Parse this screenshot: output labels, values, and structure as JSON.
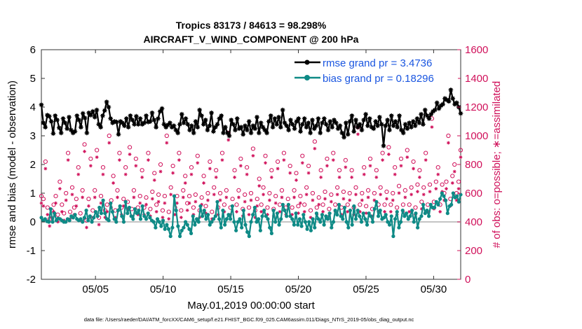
{
  "chart_data": {
    "type": "line",
    "title": "Tropics 83173 / 84613 = 98.298%",
    "subtitle": "AIRCRAFT_V_WIND_COMPONENT @ 200 hPa",
    "xlabel": "May.01,2019 00:00:00 start",
    "ylabel_left": "rmse and bias (model - observation)",
    "ylabel_right": "# of obs: o=possible; ∗=assimilated",
    "footer": "data file: /Users/raeder/DAI/ATM_forcXX/CAM6_setup/f.e21.FHIST_BGC.f09_025.CAM6assim.011/Diags_NTrS_2019-05/obs_diag_output.nc",
    "x_range_days": [
      1,
      32
    ],
    "y_left_range": [
      -2,
      6
    ],
    "y_right_range": [
      0,
      1600
    ],
    "x_tick_days": [
      5,
      10,
      15,
      20,
      25,
      30
    ],
    "x_tick_labels": [
      "05/05",
      "05/10",
      "05/15",
      "05/20",
      "05/25",
      "05/30"
    ],
    "y_left_ticks": [
      "-2",
      "-1",
      "0",
      "1",
      "2",
      "3",
      "4",
      "5",
      "6"
    ],
    "y_right_ticks": [
      "0",
      "200",
      "400",
      "600",
      "800",
      "1000",
      "1200",
      "1400",
      "1600"
    ],
    "zero_line": 0,
    "colors": {
      "rmse": "#000000",
      "bias": "#0e8a86",
      "obs": "#d0105a",
      "zero": "#bbbbbb"
    },
    "series": [
      {
        "name": "rmse grand pr = 3.4736",
        "axis": "left",
        "values": [
          4.08,
          3.45,
          3.3,
          3.72,
          3.68,
          3.5,
          3.08,
          3.7,
          3.55,
          3.28,
          3.1,
          3.6,
          3.45,
          3.25,
          3.65,
          3.2,
          3.1,
          3.15,
          3.7,
          3.55,
          3.3,
          3.78,
          3.62,
          3.1,
          3.8,
          3.72,
          3.85,
          3.65,
          3.9,
          3.4,
          3.3,
          3.7,
          3.88,
          4.18,
          4.0,
          3.6,
          3.45,
          3.5,
          3.48,
          3.05,
          3.5,
          3.45,
          3.35,
          3.6,
          3.3,
          3.7,
          3.55,
          3.4,
          3.68,
          3.4,
          3.6,
          3.4,
          3.45,
          3.7,
          3.48,
          3.5,
          3.8,
          3.55,
          3.3,
          3.6,
          3.85,
          3.95,
          3.4,
          3.3,
          3.38,
          3.45,
          3.3,
          3.35,
          3.2,
          3.1,
          3.4,
          3.75,
          3.45,
          3.6,
          3.4,
          3.2,
          3.35,
          3.1,
          3.5,
          3.3,
          3.9,
          3.7,
          3.4,
          3.55,
          3.2,
          3.35,
          3.8,
          3.15,
          3.3,
          3.4,
          3.6,
          3.7,
          3.1,
          3.3,
          3.1,
          3.0,
          3.55,
          3.4,
          3.2,
          3.6,
          3.25,
          3.3,
          3.05,
          3.35,
          3.2,
          3.5,
          3.1,
          3.35,
          3.25,
          3.65,
          3.1,
          3.45,
          3.3,
          3.2,
          3.1,
          3.5,
          3.7,
          3.3,
          3.6,
          3.4,
          3.65,
          3.3,
          3.9,
          3.45,
          3.35,
          3.2,
          3.55,
          3.4,
          3.25,
          3.5,
          3.6,
          3.15,
          3.4,
          3.6,
          3.3,
          3.45,
          3.1,
          3.55,
          3.25,
          3.35,
          3.6,
          3.1,
          3.45,
          3.6,
          3.4,
          3.2,
          3.5,
          3.3,
          3.55,
          3.45,
          3.25,
          3.35,
          3.1,
          2.95,
          3.45,
          3.05,
          3.5,
          3.7,
          3.15,
          3.55,
          3.3,
          3.4,
          3.2,
          3.55,
          3.75,
          3.35,
          3.6,
          3.3,
          3.25,
          3.5,
          3.35,
          3.65,
          3.4,
          2.65,
          3.35,
          3.55,
          3.2,
          3.7,
          3.35,
          3.5,
          3.3,
          3.7,
          3.2,
          3.1,
          3.4,
          3.25,
          3.45,
          3.3,
          3.5,
          3.35,
          3.6,
          3.45,
          3.75,
          3.4,
          3.9,
          3.7,
          3.6,
          3.75,
          3.85,
          3.9,
          4.15,
          3.95,
          4.05,
          4.1,
          4.3,
          4.25,
          4.2,
          4.6,
          4.3,
          4.1,
          4.15,
          4.0,
          3.78
        ]
      },
      {
        "name": "bias grand pr = 0.18296",
        "axis": "left",
        "values": [
          0.15,
          0.05,
          0.1,
          0.02,
          0.0,
          0.45,
          0.0,
          0.3,
          0.05,
          0.12,
          0.1,
          0.05,
          0.0,
          0.0,
          0.1,
          0.05,
          0.2,
          0.15,
          0.25,
          0.1,
          0.05,
          0.1,
          0.0,
          0.15,
          0.4,
          0.05,
          0.2,
          0.0,
          0.15,
          0.35,
          0.2,
          0.5,
          0.3,
          0.75,
          0.3,
          0.1,
          0.05,
          0.65,
          0.35,
          0.1,
          0.0,
          0.4,
          0.55,
          0.2,
          0.0,
          0.7,
          0.3,
          0.5,
          0.2,
          0.1,
          0.45,
          0.3,
          0.4,
          0.1,
          0.55,
          0.2,
          0.1,
          0.3,
          0.15,
          0.05,
          0.0,
          -0.2,
          0.1,
          0.0,
          -0.15,
          0.05,
          -0.25,
          -0.1,
          -0.25,
          -0.5,
          -0.2,
          0.9,
          0.4,
          -0.15,
          -0.5,
          -0.3,
          -0.2,
          0.0,
          -0.1,
          -0.25,
          -0.4,
          0.2,
          -0.1,
          0.1,
          0.0,
          0.55,
          0.2,
          0.4,
          0.1,
          0.25,
          -0.1,
          0.0,
          0.1,
          0.2,
          0.7,
          0.1,
          -0.2,
          0.4,
          -0.1,
          0.1,
          0.25,
          0.1,
          0.55,
          0.0,
          -0.3,
          0.0,
          0.1,
          -0.2,
          0.4,
          -0.1,
          -0.35,
          -0.5,
          0.0,
          0.25,
          0.5,
          0.0,
          0.1,
          -0.3,
          0.2,
          0.4,
          0.2,
          0.1,
          -0.2,
          -0.4,
          0.4,
          0.0,
          0.3,
          -0.1,
          0.1,
          0.6,
          0.4,
          0.2,
          0.6,
          0.2,
          0.1,
          -0.1,
          0.3,
          -0.1,
          0.1,
          -0.15,
          0.25,
          0.0,
          -0.25,
          0.0,
          -0.3,
          0.1,
          -0.2,
          0.3,
          0.1,
          0.0,
          0.25,
          -0.1,
          0.2,
          0.1,
          0.3,
          -0.2,
          0.0,
          0.4,
          0.25,
          0.6,
          0.2,
          0.1,
          0.5,
          0.0,
          -0.2,
          0.4,
          -0.1,
          0.55,
          0.1,
          0.4,
          0.2,
          0.0,
          0.3,
          0.1,
          -0.1,
          0.3,
          0.2,
          0.0,
          0.45,
          0.7,
          0.2,
          0.4,
          0.1,
          0.15,
          0.25,
          0.0,
          -0.1,
          0.2,
          -0.5,
          0.1,
          0.35,
          -0.2,
          0.0,
          0.4,
          0.2,
          0.3,
          0.1,
          0.2,
          0.4,
          0.0,
          0.3,
          -0.2,
          0.1,
          0.2,
          0.6,
          0.3,
          0.4,
          0.2,
          0.6,
          0.5,
          0.5,
          0.7,
          0.6,
          0.8,
          1.0,
          0.9,
          0.75,
          0.3,
          0.55,
          0.6,
          1.0,
          0.85,
          0.9,
          0.7,
          0.95
        ]
      },
      {
        "name": "obs possible (o)",
        "axis": "right",
        "values": [
          580,
          560,
          820,
          500,
          420,
          480,
          520,
          580,
          450,
          680,
          520,
          460,
          600,
          880,
          470,
          640,
          500,
          560,
          780,
          460,
          620,
          940,
          410,
          560,
          840,
          480,
          620,
          900,
          430,
          580,
          780,
          480,
          520,
          1000,
          550,
          720,
          480,
          620,
          880,
          500,
          560,
          780,
          540,
          920,
          490,
          620,
          840,
          500,
          580,
          760,
          500,
          570,
          880,
          490,
          610,
          740,
          520,
          590,
          800,
          480,
          580,
          1000,
          470,
          640,
          790,
          500,
          580,
          880,
          480,
          620,
          720,
          530,
          580,
          780,
          500,
          590,
          860,
          480,
          570,
          720,
          510,
          600,
          820,
          470,
          640,
          760,
          500,
          600,
          880,
          520,
          620,
          1020,
          500,
          560,
          760,
          520,
          620,
          840,
          490,
          590,
          780,
          500,
          600,
          910,
          480,
          560,
          700,
          520,
          640,
          860,
          500,
          600,
          760,
          490,
          580,
          820,
          520,
          620,
          880,
          500,
          560,
          790,
          500,
          620,
          740,
          510,
          580,
          860,
          520,
          640,
          790,
          480,
          600,
          960,
          500,
          570,
          760,
          520,
          610,
          840,
          490,
          590,
          880,
          520,
          640,
          760,
          500,
          610,
          830,
          520,
          600,
          760,
          500,
          640,
          1060,
          520,
          600,
          780,
          510,
          620,
          840,
          490,
          600,
          760,
          520,
          640,
          880,
          520,
          610,
          920,
          520,
          600,
          780,
          500,
          650,
          840,
          520,
          620,
          900,
          520,
          640,
          820,
          500,
          660,
          760,
          540,
          640,
          880,
          520,
          660,
          1120,
          540,
          680,
          780,
          520,
          660,
          600,
          680,
          1000,
          560,
          720,
          800,
          600,
          680,
          900
        ]
      },
      {
        "name": "obs assimilated (∗)",
        "axis": "right",
        "values": [
          570,
          550,
          810,
          490,
          410,
          470,
          510,
          570,
          440,
          670,
          510,
          450,
          590,
          870,
          460,
          630,
          490,
          550,
          770,
          450,
          610,
          930,
          400,
          550,
          830,
          470,
          610,
          890,
          420,
          570,
          770,
          470,
          510,
          990,
          540,
          710,
          470,
          610,
          870,
          490,
          550,
          770,
          530,
          910,
          480,
          610,
          830,
          490,
          570,
          750,
          490,
          560,
          870,
          480,
          600,
          730,
          510,
          580,
          790,
          470,
          570,
          990,
          460,
          630,
          780,
          490,
          570,
          870,
          470,
          610,
          710,
          520,
          570,
          770,
          490,
          580,
          850,
          470,
          560,
          710,
          500,
          590,
          810,
          460,
          630,
          750,
          490,
          590,
          870,
          510,
          610,
          1010,
          490,
          550,
          750,
          510,
          610,
          830,
          480,
          580,
          770,
          490,
          590,
          900,
          470,
          550,
          690,
          510,
          630,
          850,
          490,
          590,
          750,
          480,
          570,
          810,
          510,
          610,
          870,
          490,
          550,
          780,
          490,
          610,
          730,
          500,
          570,
          850,
          510,
          630,
          780,
          470,
          590,
          950,
          490,
          560,
          750,
          510,
          600,
          830,
          480,
          580,
          870,
          510,
          630,
          750,
          490,
          600,
          820,
          510,
          590,
          750,
          490,
          630,
          1050,
          510,
          590,
          770,
          500,
          610,
          830,
          480,
          590,
          750,
          510,
          630,
          870,
          510,
          600,
          910,
          510,
          590,
          770,
          490,
          640,
          830,
          510,
          610,
          890,
          510,
          630,
          810,
          490,
          650,
          750,
          530,
          630,
          870,
          510,
          650,
          1100,
          530,
          670,
          770,
          510,
          650,
          590,
          670,
          990,
          550,
          710,
          790,
          590,
          670,
          890
        ]
      }
    ]
  }
}
